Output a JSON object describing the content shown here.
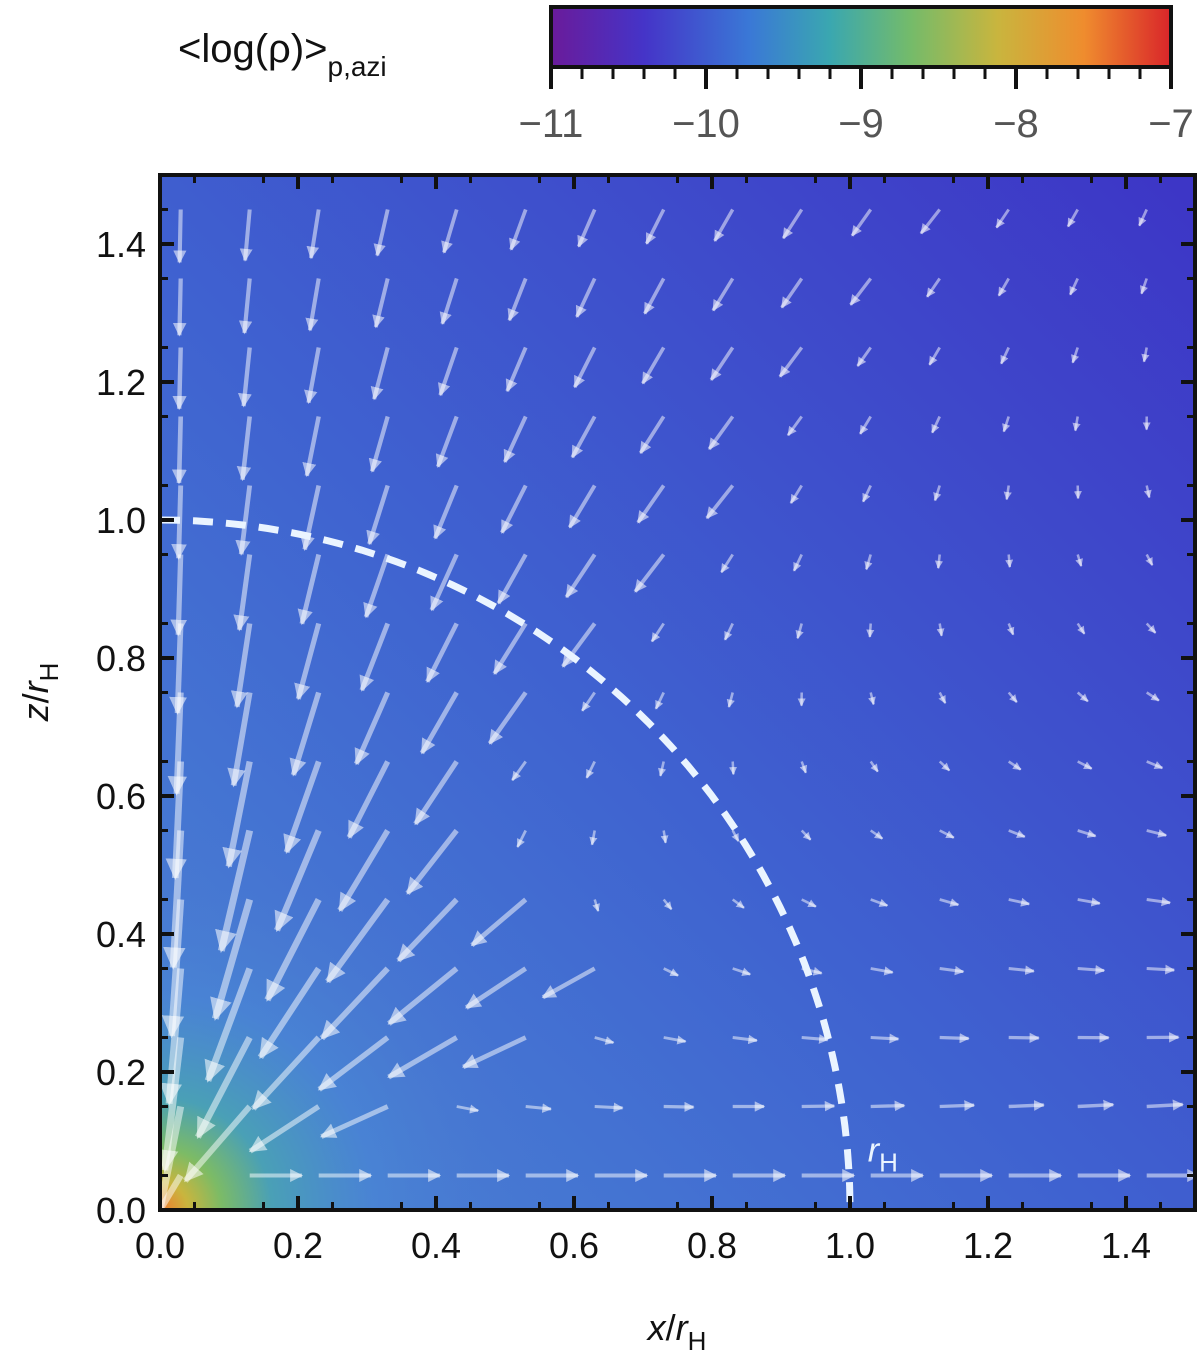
{
  "chart_data": {
    "type": "heatmap",
    "title": "",
    "colorbar": {
      "label_main": "<log(ρ)>",
      "label_sub": "p,azi",
      "range": [
        -11,
        -7
      ],
      "ticks": [
        -11,
        -10,
        -9,
        -8,
        -7
      ],
      "tick_labels": [
        "−11",
        "−10",
        "−9",
        "−8",
        "−7"
      ],
      "colormap": [
        "#6a1b9a",
        "#4534c8",
        "#3a78d6",
        "#3aa7b0",
        "#74bb6a",
        "#c9b53e",
        "#ef8c2e",
        "#d9252a"
      ]
    },
    "xlabel_var": "x",
    "xlabel_unit": "r",
    "xlabel_sub": "H",
    "ylabel_var": "z",
    "ylabel_unit": "r",
    "ylabel_sub": "H",
    "xlim": [
      0,
      1.5
    ],
    "ylim": [
      0,
      1.5
    ],
    "xticks": [
      0.0,
      0.2,
      0.4,
      0.6,
      0.8,
      1.0,
      1.2,
      1.4
    ],
    "xtick_labels": [
      "0.0",
      "0.2",
      "0.4",
      "0.6",
      "0.8",
      "1.0",
      "1.2",
      "1.4"
    ],
    "yticks": [
      0.0,
      0.2,
      0.4,
      0.6,
      0.8,
      1.0,
      1.2,
      1.4
    ],
    "ytick_labels": [
      "0.0",
      "0.2",
      "0.4",
      "0.6",
      "0.8",
      "1.0",
      "1.2",
      "1.4"
    ],
    "density_peak": {
      "x": 0.02,
      "z": 0.01,
      "log_rho": -7.5
    },
    "background_log_rho": -10.3,
    "overlays": {
      "vector_field": "velocity arrows: inflow toward origin at high latitudes, outflow along the midplane beyond x ≈ 0.6",
      "hill_sphere": {
        "radius": 1.0,
        "style": "dashed",
        "color": "#eaf4ff"
      }
    },
    "annotations": [
      {
        "text_var": "r",
        "text_sub": "H",
        "x": 1.02,
        "z": 0.07
      }
    ]
  }
}
